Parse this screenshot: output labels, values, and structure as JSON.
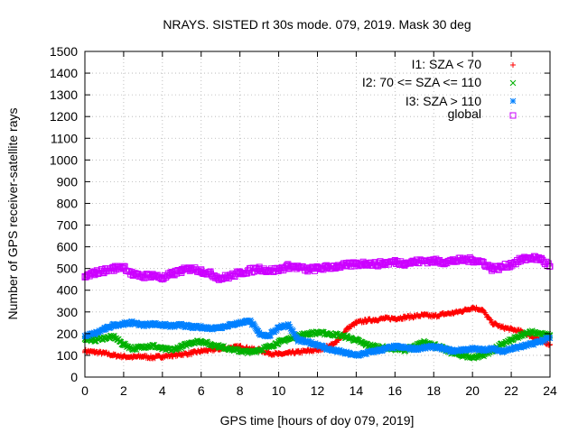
{
  "chart_data": {
    "type": "scatter",
    "title": "NRAYS. SISTED rt 30s mode. 079, 2019. Mask 30 deg",
    "xlabel": "GPS time [hours of doy 079, 2019]",
    "ylabel": "Number of GPS receiver-satellite rays",
    "xlim": [
      0,
      24
    ],
    "ylim": [
      0,
      1500
    ],
    "xticks": [
      0,
      2,
      4,
      6,
      8,
      10,
      12,
      14,
      16,
      18,
      20,
      22,
      24
    ],
    "yticks": [
      0,
      100,
      200,
      300,
      400,
      500,
      600,
      700,
      800,
      900,
      1000,
      1100,
      1200,
      1300,
      1400,
      1500
    ],
    "grid": true,
    "legend_position": "top-right",
    "series": [
      {
        "name": "I1: SZA < 70",
        "color": "#ff0000",
        "marker": "plus",
        "x": [
          0,
          0.5,
          1,
          1.5,
          2,
          2.5,
          3,
          3.5,
          4,
          4.5,
          5,
          5.5,
          6,
          6.5,
          7,
          7.5,
          8,
          8.5,
          9,
          9.5,
          10,
          10.5,
          11,
          11.5,
          12,
          12.5,
          13,
          13.5,
          14,
          14.5,
          15,
          15.5,
          16,
          16.5,
          17,
          17.5,
          18,
          18.5,
          19,
          19.5,
          20,
          20.5,
          21,
          21.5,
          22,
          22.5,
          23,
          23.5,
          24
        ],
        "values": [
          120,
          115,
          110,
          100,
          95,
          92,
          95,
          90,
          95,
          100,
          105,
          110,
          120,
          125,
          130,
          135,
          140,
          130,
          125,
          110,
          105,
          110,
          115,
          120,
          125,
          140,
          160,
          220,
          250,
          260,
          265,
          270,
          270,
          275,
          280,
          285,
          280,
          290,
          295,
          305,
          320,
          310,
          250,
          230,
          220,
          210,
          190,
          170,
          150
        ]
      },
      {
        "name": "I2: 70 <= SZA <= 110",
        "color": "#00b000",
        "marker": "cross",
        "x": [
          0,
          0.5,
          1,
          1.5,
          2,
          2.5,
          3,
          3.5,
          4,
          4.5,
          5,
          5.5,
          6,
          6.5,
          7,
          7.5,
          8,
          8.5,
          9,
          9.5,
          10,
          10.5,
          11,
          11.5,
          12,
          12.5,
          13,
          13.5,
          14,
          14.5,
          15,
          15.5,
          16,
          16.5,
          17,
          17.5,
          18,
          18.5,
          19,
          19.5,
          20,
          20.5,
          21,
          21.5,
          22,
          22.5,
          23,
          23.5,
          24
        ],
        "values": [
          175,
          170,
          180,
          185,
          150,
          130,
          140,
          145,
          130,
          125,
          140,
          160,
          165,
          150,
          140,
          130,
          120,
          115,
          125,
          140,
          160,
          175,
          190,
          200,
          205,
          200,
          195,
          185,
          170,
          150,
          140,
          135,
          130,
          125,
          140,
          160,
          150,
          130,
          110,
          100,
          90,
          100,
          120,
          150,
          170,
          190,
          210,
          200,
          190
        ]
      },
      {
        "name": "I3: SZA > 110",
        "color": "#0080ff",
        "marker": "star",
        "x": [
          0,
          0.5,
          1,
          1.5,
          2,
          2.5,
          3,
          3.5,
          4,
          4.5,
          5,
          5.5,
          6,
          6.5,
          7,
          7.5,
          8,
          8.5,
          9,
          9.5,
          10,
          10.5,
          11,
          11.5,
          12,
          12.5,
          13,
          13.5,
          14,
          14.5,
          15,
          15.5,
          16,
          16.5,
          17,
          17.5,
          18,
          18.5,
          19,
          19.5,
          20,
          20.5,
          21,
          21.5,
          22,
          22.5,
          23,
          23.5,
          24
        ],
        "values": [
          190,
          200,
          220,
          240,
          245,
          250,
          240,
          245,
          240,
          235,
          240,
          230,
          230,
          225,
          230,
          240,
          250,
          260,
          200,
          190,
          230,
          240,
          170,
          160,
          150,
          130,
          120,
          110,
          100,
          110,
          120,
          130,
          140,
          135,
          130,
          135,
          140,
          130,
          120,
          125,
          130,
          125,
          130,
          120,
          130,
          140,
          150,
          165,
          180
        ]
      },
      {
        "name": "global",
        "color": "#cc00ff",
        "marker": "square",
        "x": [
          0,
          0.5,
          1,
          1.5,
          2,
          2.5,
          3,
          3.5,
          4,
          4.5,
          5,
          5.5,
          6,
          6.5,
          7,
          7.5,
          8,
          8.5,
          9,
          9.5,
          10,
          10.5,
          11,
          11.5,
          12,
          12.5,
          13,
          13.5,
          14,
          14.5,
          15,
          15.5,
          16,
          16.5,
          17,
          17.5,
          18,
          18.5,
          19,
          19.5,
          20,
          20.5,
          21,
          21.5,
          22,
          22.5,
          23,
          23.5,
          24
        ],
        "values": [
          460,
          480,
          490,
          500,
          510,
          470,
          465,
          470,
          455,
          475,
          490,
          500,
          490,
          475,
          455,
          465,
          480,
          490,
          500,
          490,
          495,
          510,
          505,
          495,
          500,
          505,
          510,
          515,
          520,
          525,
          520,
          525,
          530,
          525,
          530,
          535,
          535,
          530,
          535,
          540,
          540,
          530,
          500,
          505,
          520,
          540,
          550,
          545,
          510
        ]
      }
    ]
  }
}
